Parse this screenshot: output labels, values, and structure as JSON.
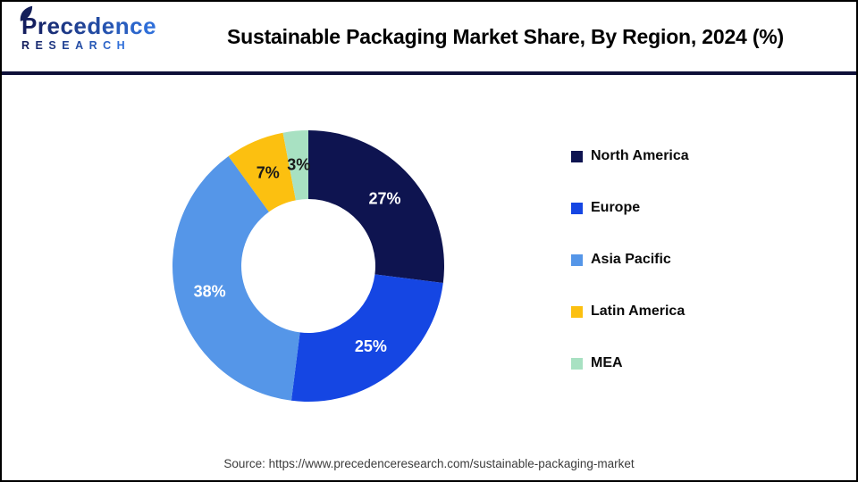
{
  "header": {
    "logo": {
      "line1": "Precedence",
      "line2": "RESEARCH",
      "color_from": "#141e5e",
      "color_to": "#2f6fd9",
      "leaf_color": "#15205a"
    },
    "title": "Sustainable Packaging Market Share, By Region, 2024 (%)"
  },
  "chart_data": {
    "type": "pie",
    "subtype": "donut",
    "title": "Sustainable Packaging Market Share, By Region, 2024 (%)",
    "categories": [
      "North America",
      "Europe",
      "Asia Pacific",
      "Latin America",
      "MEA"
    ],
    "values": [
      27,
      25,
      38,
      7,
      3
    ],
    "unit": "%",
    "colors": [
      "#0e1450",
      "#1546e3",
      "#5596e8",
      "#fcc010",
      "#a8e1c2"
    ],
    "label_colors": [
      "#ffffff",
      "#ffffff",
      "#ffffff",
      "#1a1a1a",
      "#1a1a1a"
    ],
    "start_angle_deg": 0,
    "direction": "clockwise",
    "donut_hole_ratio": 0.49,
    "legend_position": "right",
    "data_labels_shown": true
  },
  "icons": {
    "logo_leaf": "leaf"
  },
  "theme": {
    "header_divider_color": "#0e1038",
    "page_border_color": "#000000",
    "background": "#ffffff"
  },
  "footer": {
    "source": "Source: https://www.precedenceresearch.com/sustainable-packaging-market"
  }
}
